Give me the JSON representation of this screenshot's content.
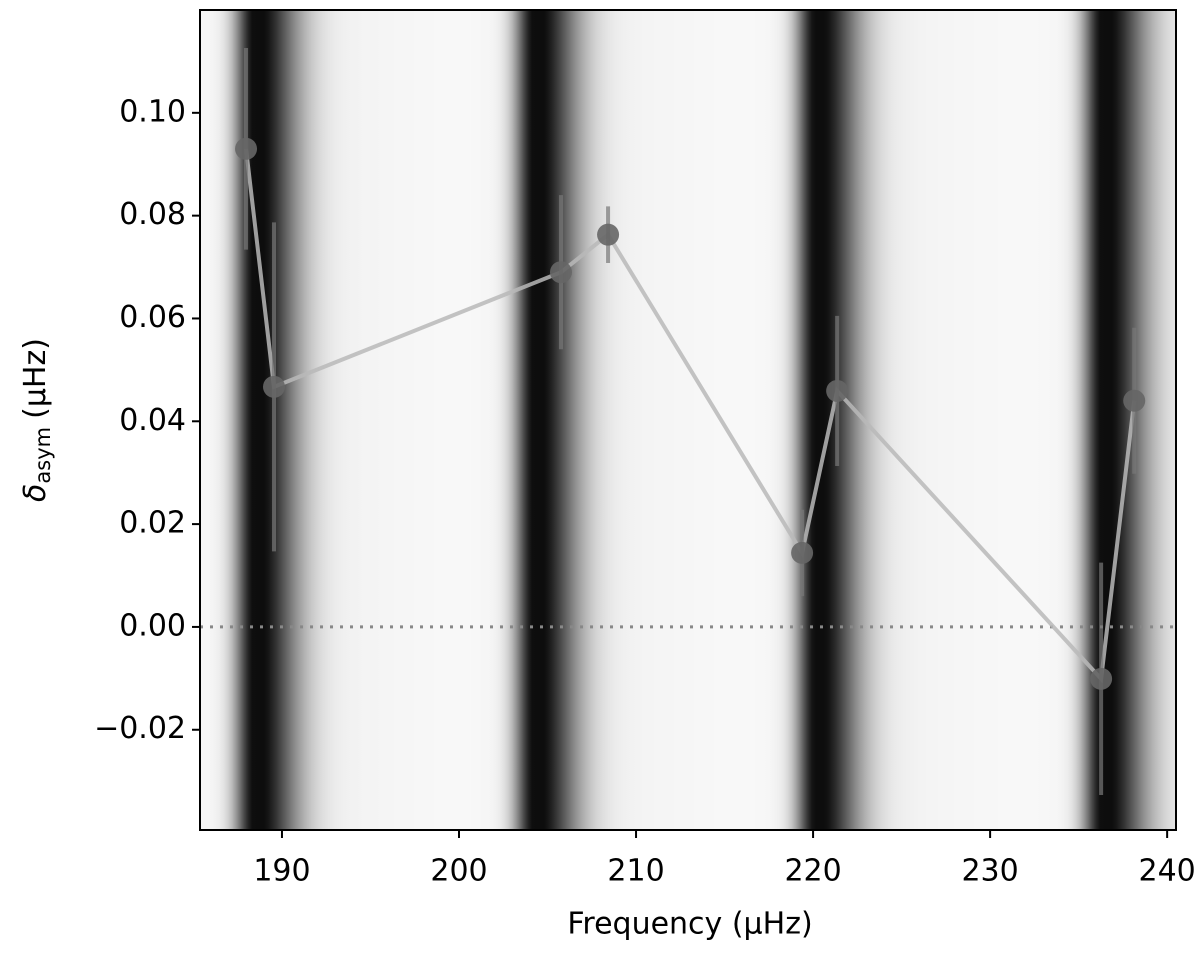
{
  "chart_data": {
    "type": "line",
    "xlabel": "Frequency (μHz)",
    "ylabel": {
      "symbol": "δ",
      "subscript": "asym",
      "unit": "(μHz)"
    },
    "x": [
      187.97,
      189.55,
      205.76,
      208.42,
      219.38,
      221.36,
      236.27,
      238.14
    ],
    "series": [
      {
        "color": "#666666",
        "line_color": "#b8b8b8",
        "values": [
          0.093,
          0.0467,
          0.069,
          0.0763,
          0.0144,
          0.0459,
          -0.0101,
          0.044
        ],
        "errors": [
          0.0196,
          0.032,
          0.015,
          0.0055,
          0.0084,
          0.0146,
          0.0226,
          0.0142
        ]
      }
    ],
    "hline": 0,
    "background_peaks": [
      188.5,
      204.3,
      220.2,
      236.4
    ],
    "xlim": [
      185.37,
      240.5
    ],
    "ylim": [
      -0.0395,
      0.12
    ],
    "xticks": [
      190,
      200,
      210,
      220,
      230,
      240
    ],
    "yticks": [
      {
        "value": -0.02,
        "label": "−0.02"
      },
      {
        "value": 0,
        "label": "0.00"
      },
      {
        "value": 0.02,
        "label": "0.02"
      },
      {
        "value": 0.04,
        "label": "0.04"
      },
      {
        "value": 0.06,
        "label": "0.06"
      },
      {
        "value": 0.08,
        "label": "0.08"
      },
      {
        "value": 0.1,
        "label": "0.10"
      }
    ],
    "grid": false
  }
}
